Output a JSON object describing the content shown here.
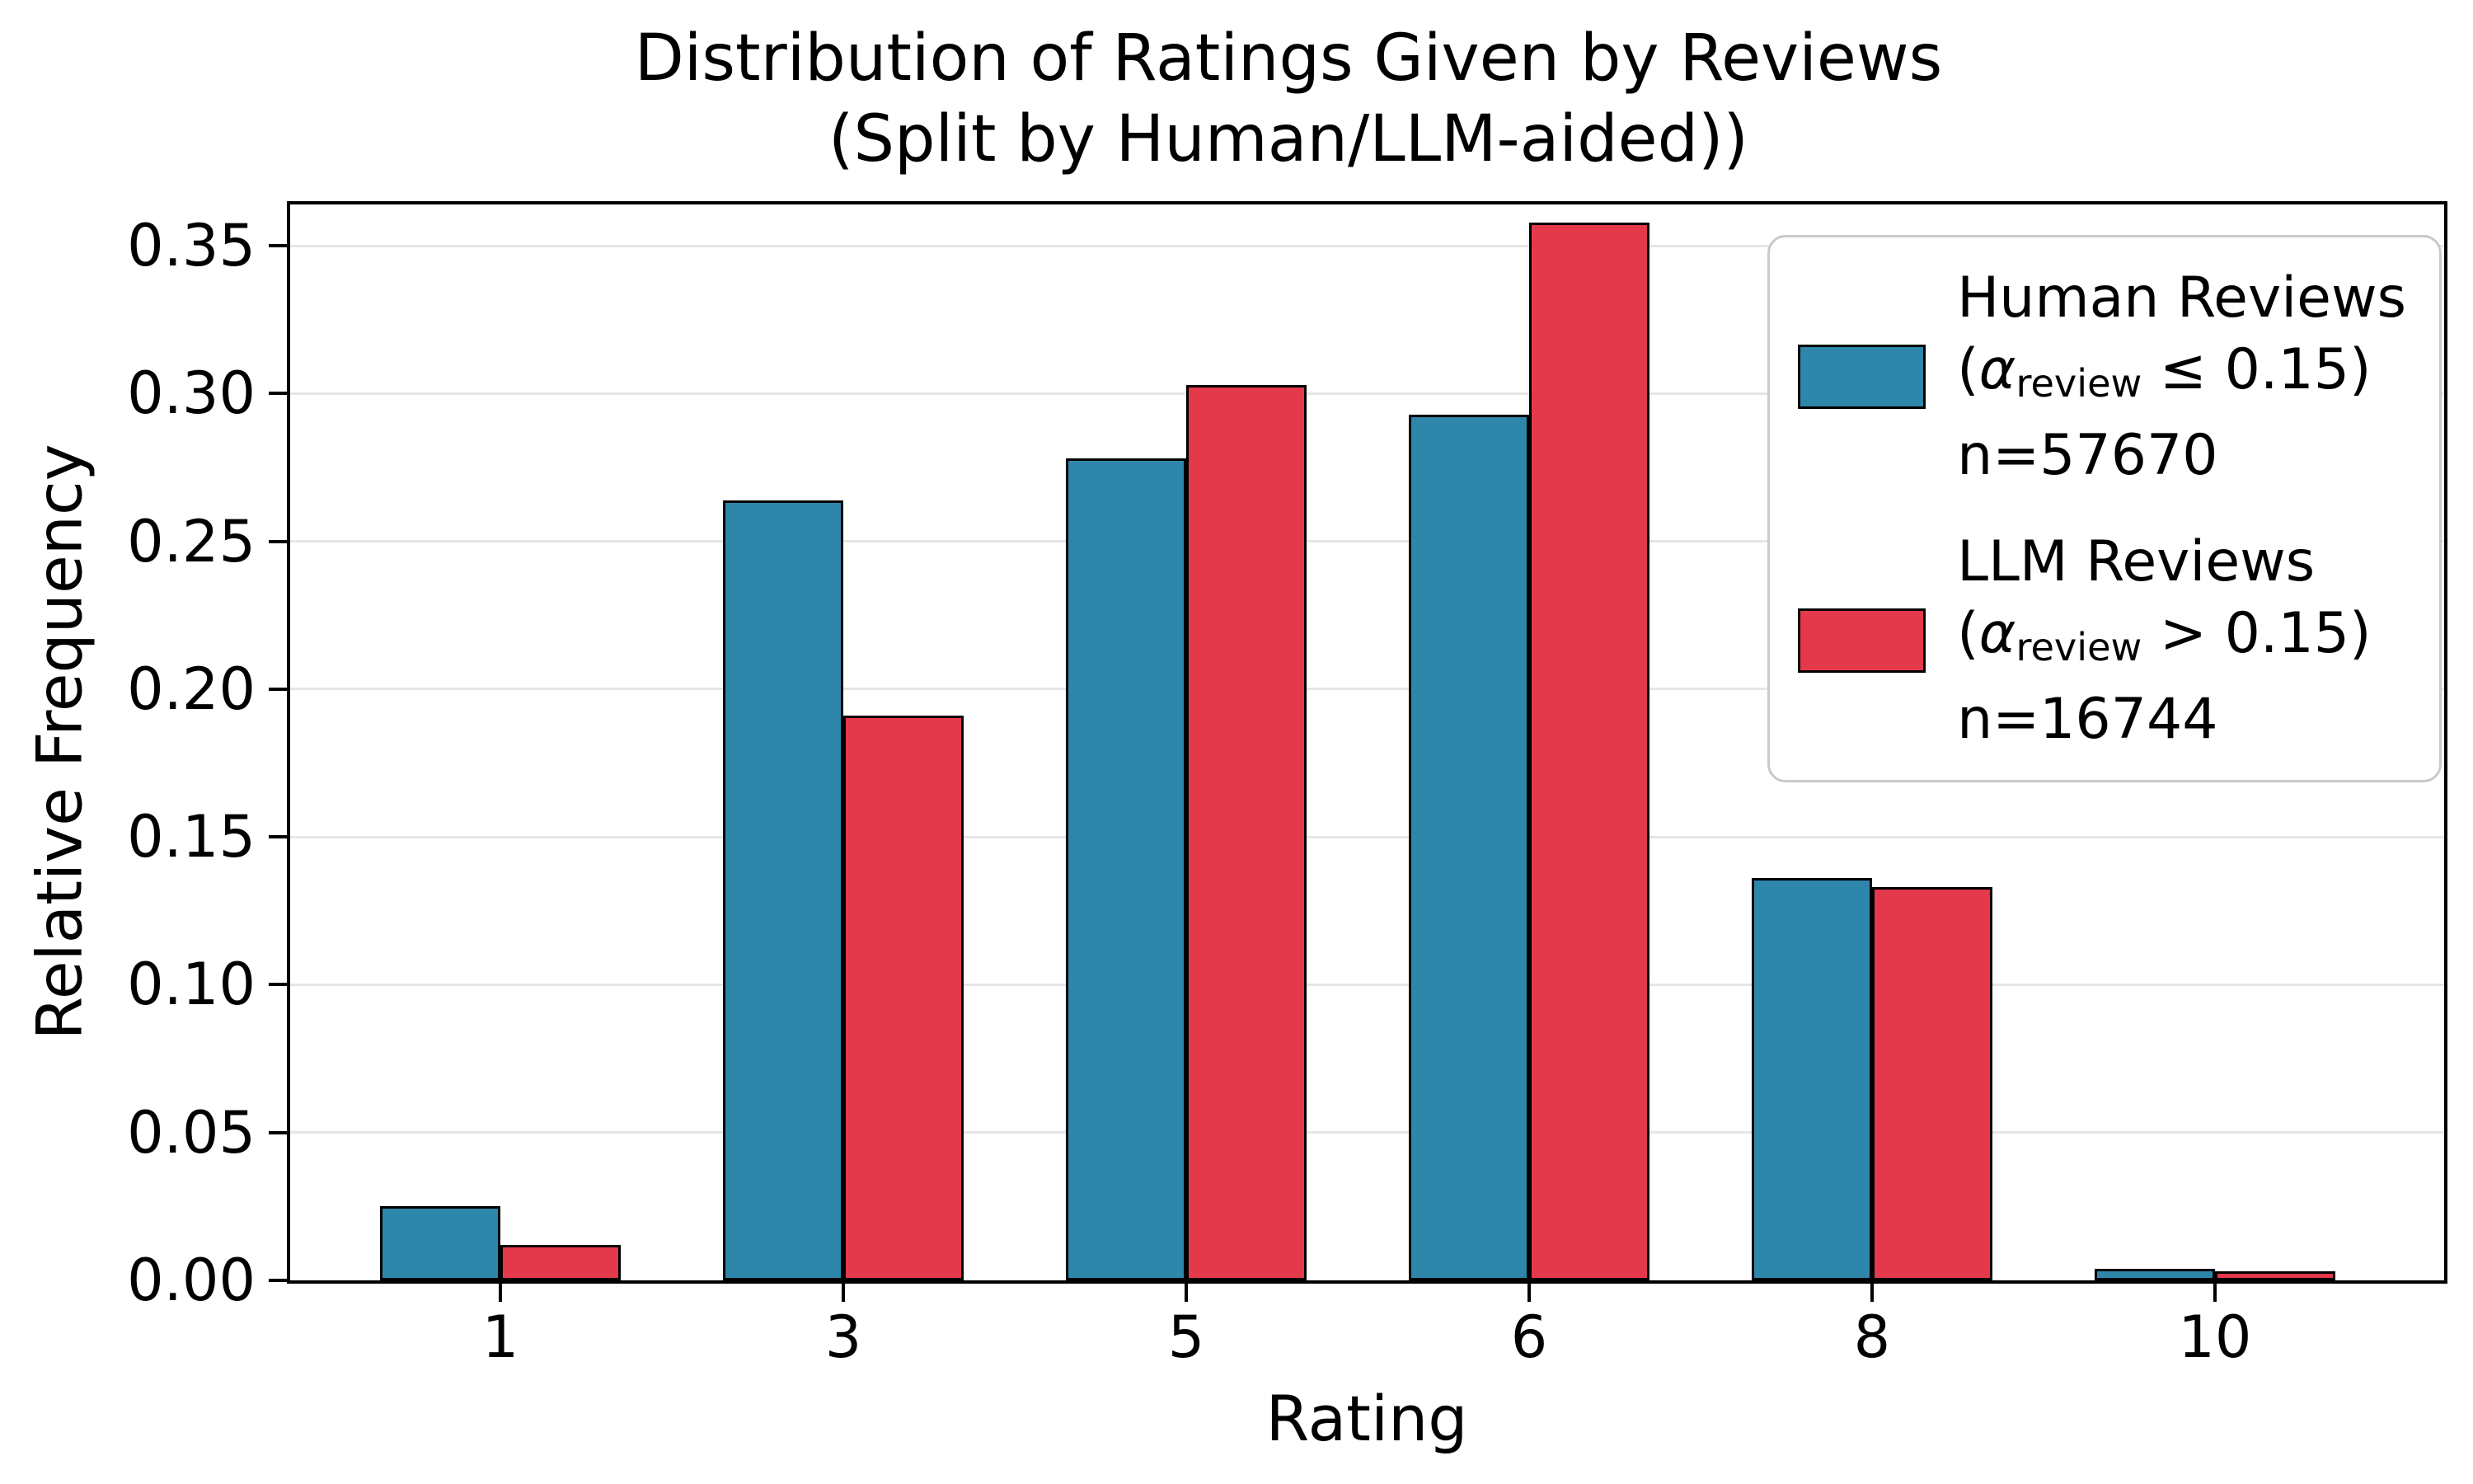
{
  "figure": {
    "title_line1": "Distribution of Ratings Given by Reviews",
    "title_line2": "(Split by Human/LLM-aided))",
    "xlabel": "Rating",
    "ylabel": "Relative Frequency"
  },
  "axes": {
    "y_ticks": [
      "0.00",
      "0.05",
      "0.10",
      "0.15",
      "0.20",
      "0.25",
      "0.30",
      "0.35"
    ],
    "x_ticks": [
      "1",
      "3",
      "5",
      "6",
      "8",
      "10"
    ]
  },
  "legend": {
    "entries": [
      {
        "name": "Human Reviews",
        "cond_open": "(",
        "alpha": "α",
        "sub": "review",
        "cond_rest": " ≤ 0.15)",
        "n": "n=57670",
        "color": "#2E86AB"
      },
      {
        "name": "LLM Reviews",
        "cond_open": "(",
        "alpha": "α",
        "sub": "review",
        "cond_rest": " > 0.15)",
        "n": "n=16744",
        "color": "#E3394B"
      }
    ]
  },
  "chart_data": {
    "type": "bar",
    "title": "Distribution of Ratings Given by Reviews\n(Split by Human/LLM-aided))",
    "xlabel": "Rating",
    "ylabel": "Relative Frequency",
    "categories": [
      1,
      3,
      5,
      6,
      8,
      10
    ],
    "series": [
      {
        "name": "Human Reviews (α_review ≤ 0.15) n=57670",
        "color": "#2E86AB",
        "values": [
          0.025,
          0.264,
          0.278,
          0.293,
          0.136,
          0.004
        ]
      },
      {
        "name": "LLM Reviews (α_review > 0.15) n=16744",
        "color": "#E3394B",
        "values": [
          0.012,
          0.191,
          0.303,
          0.358,
          0.133,
          0.003
        ]
      }
    ],
    "ylim": [
      0,
      0.364
    ],
    "grid": "horizontal",
    "grid_color": "#E6E6E6",
    "edge_color": "#000000",
    "legend_position": "upper right"
  },
  "colors": {
    "human": "#2E86AB",
    "llm": "#E3394B",
    "grid": "#E6E6E6",
    "edge": "#000000",
    "legend_border": "#C9C9C9"
  }
}
